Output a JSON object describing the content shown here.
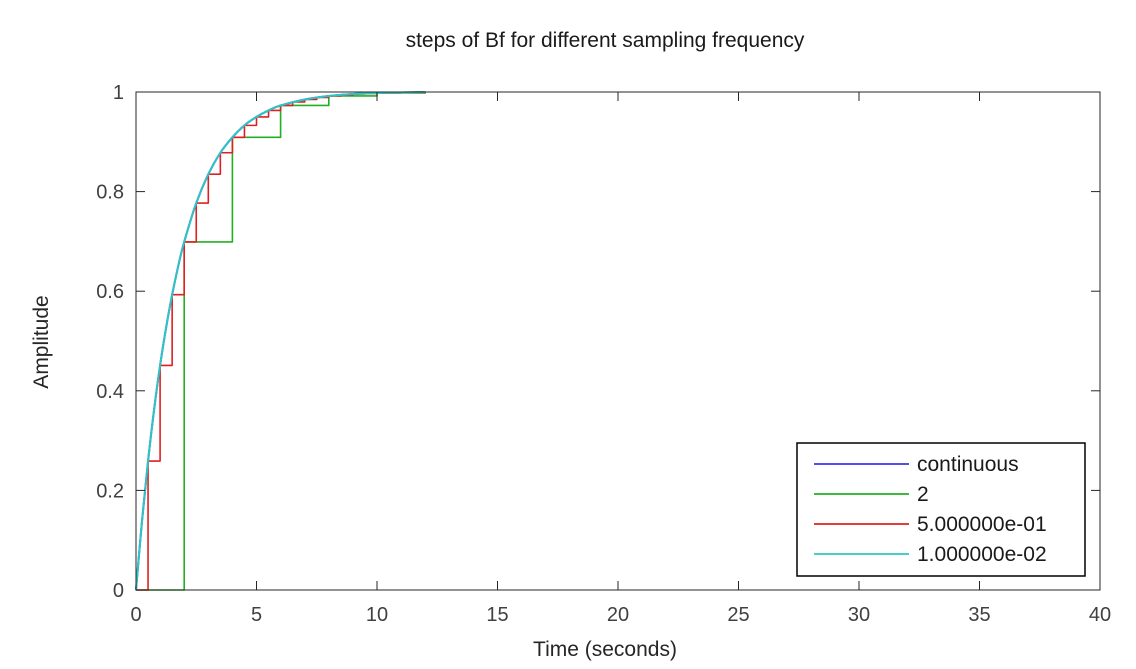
{
  "chart_data": {
    "type": "line",
    "title": "steps of Bf for different sampling frequency",
    "xlabel": "Time (seconds)",
    "ylabel": "Amplitude",
    "xlim": [
      0,
      40
    ],
    "ylim": [
      0,
      1
    ],
    "x_ticks": [
      0,
      5,
      10,
      15,
      20,
      25,
      30,
      35,
      40
    ],
    "y_ticks": [
      0,
      0.2,
      0.4,
      0.6,
      0.8,
      1
    ],
    "x_tick_labels": [
      "0",
      "5",
      "10",
      "15",
      "20",
      "25",
      "30",
      "35",
      "40"
    ],
    "y_tick_labels": [
      "0",
      "0.2",
      "0.4",
      "0.6",
      "0.8",
      "1"
    ],
    "grid": false,
    "legend_position": "bottom-right",
    "series": [
      {
        "name": "continuous",
        "color": "#3a36e6",
        "style": "line",
        "x": [
          0,
          0.25,
          0.5,
          0.75,
          1,
          1.25,
          1.5,
          1.75,
          2,
          2.5,
          3,
          3.5,
          4,
          4.5,
          5,
          5.5,
          6,
          7,
          8,
          9,
          10,
          11,
          12
        ],
        "y": [
          0,
          0.139,
          0.259,
          0.362,
          0.451,
          0.527,
          0.593,
          0.65,
          0.699,
          0.777,
          0.835,
          0.878,
          0.909,
          0.933,
          0.95,
          0.963,
          0.973,
          0.985,
          0.992,
          0.996,
          0.998,
          0.999,
          1.0
        ]
      },
      {
        "name": "2",
        "color": "#22b022",
        "style": "step",
        "x": [
          0,
          2,
          4,
          6,
          8,
          10,
          12
        ],
        "y": [
          0,
          0.699,
          0.909,
          0.973,
          0.992,
          0.998,
          0.999
        ]
      },
      {
        "name": "5.000000e-01",
        "color": "#e02020",
        "style": "step",
        "x": [
          0,
          0.5,
          1,
          1.5,
          2,
          2.5,
          3,
          3.5,
          4,
          4.5,
          5,
          5.5,
          6,
          6.5,
          7,
          7.5,
          8,
          8.5,
          9,
          9.5,
          10,
          10.5,
          11,
          11.5,
          12
        ],
        "y": [
          0,
          0.259,
          0.451,
          0.593,
          0.699,
          0.777,
          0.835,
          0.878,
          0.909,
          0.933,
          0.95,
          0.963,
          0.973,
          0.98,
          0.985,
          0.989,
          0.992,
          0.994,
          0.996,
          0.997,
          0.998,
          0.998,
          0.999,
          0.999,
          1.0
        ]
      },
      {
        "name": "1.000000e-02",
        "color": "#2fc4c4",
        "style": "line",
        "x": [
          0,
          0.25,
          0.5,
          0.75,
          1,
          1.25,
          1.5,
          1.75,
          2,
          2.5,
          3,
          3.5,
          4,
          4.5,
          5,
          5.5,
          6,
          7,
          8,
          9,
          10,
          11,
          12
        ],
        "y": [
          0,
          0.139,
          0.259,
          0.362,
          0.451,
          0.527,
          0.593,
          0.65,
          0.699,
          0.777,
          0.835,
          0.878,
          0.909,
          0.933,
          0.95,
          0.963,
          0.973,
          0.985,
          0.992,
          0.996,
          0.998,
          0.999,
          1.0
        ]
      }
    ]
  }
}
